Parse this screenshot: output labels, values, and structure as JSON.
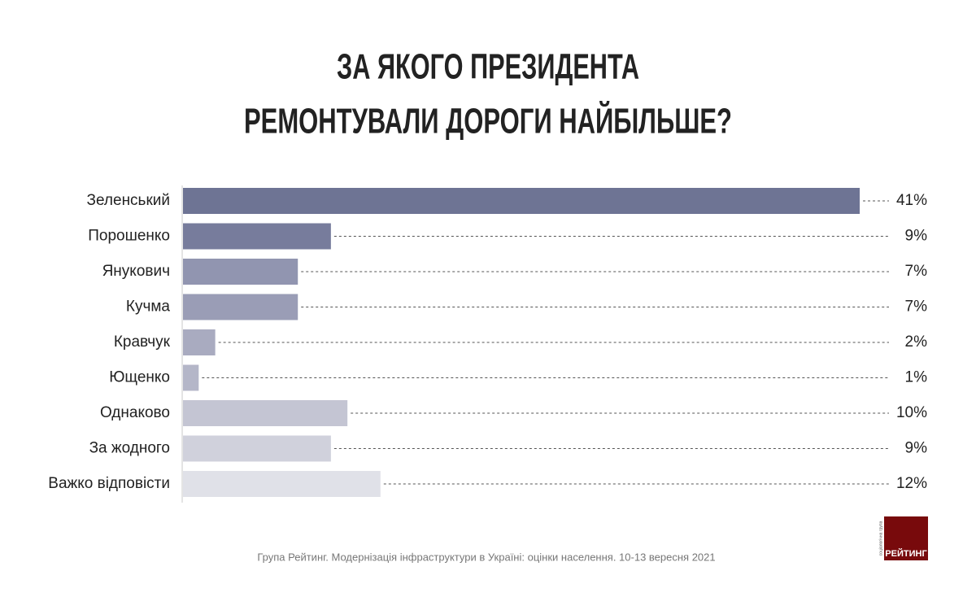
{
  "chart_data": {
    "type": "hbar",
    "title": [
      "ЗА ЯКОГО ПРЕЗИДЕНТА",
      "РЕМОНТУВАЛИ ДОРОГИ НАЙБІЛЬШЕ?"
    ],
    "categories": [
      "Зеленський",
      "Порошенко",
      "Янукович",
      "Кучма",
      "Кравчук",
      "Ющенко",
      "Однаково",
      "За жодного",
      "Важко відповісти"
    ],
    "values": [
      41,
      9,
      7,
      7,
      2,
      1,
      10,
      9,
      12
    ],
    "value_labels": [
      "41%",
      "9%",
      "7%",
      "7%",
      "2%",
      "1%",
      "10%",
      "9%",
      "12%"
    ],
    "colors": [
      "#6e7494",
      "#777c9c",
      "#9195b0",
      "#9a9db6",
      "#a9abc0",
      "#b4b6c8",
      "#c4c5d3",
      "#d0d1dc",
      "#e0e1e8"
    ],
    "source": "Група Рейтинг. Модернізація інфраструктури в Україні: оцінки населення. 10-13 вересня 2021",
    "logo": "РЕЙТИНГ",
    "logo_caption": "соціологічна група"
  }
}
